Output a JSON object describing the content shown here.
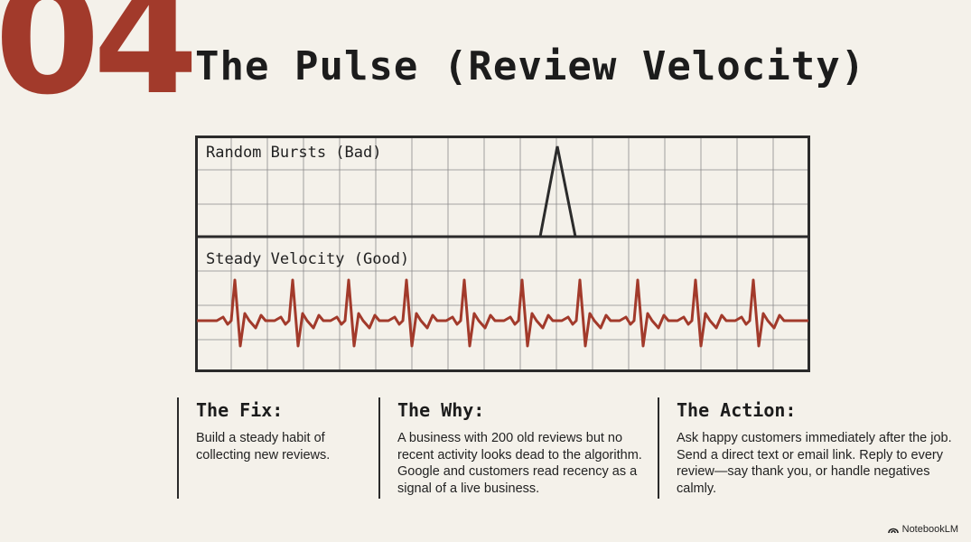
{
  "slide": {
    "number": "04",
    "title": "The Pulse (Review Velocity)"
  },
  "diagram": {
    "top_panel_label": "Random Bursts (Bad)",
    "bottom_panel_label": "Steady Velocity (Good)",
    "grid_color": "#8a8a8a",
    "frame_color": "#2b2b2b",
    "steady_line_color": "#a23a2b",
    "burst_line_color": "#2b2b2b"
  },
  "columns": [
    {
      "heading": "The Fix:",
      "body": "Build a steady habit of collecting new reviews."
    },
    {
      "heading": "The Why:",
      "body": "A business with 200 old reviews but no recent activity looks dead to the algorithm. Google and customers read recency as a signal of a live business."
    },
    {
      "heading": "The Action:",
      "body": "Ask happy customers immediately after the job. Send a direct text or email link. Reply to every review—say thank you, or handle negatives calmly."
    }
  ],
  "brand": {
    "icon": "notebooklm-logo-icon",
    "label": "NotebookLM"
  }
}
